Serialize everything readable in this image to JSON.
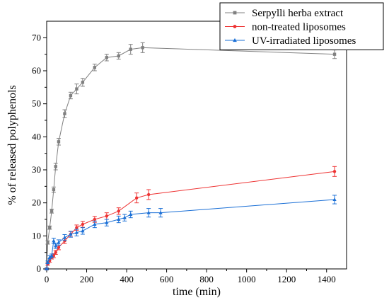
{
  "chart_data": {
    "type": "line",
    "title": "",
    "xlabel": "time (min)",
    "ylabel": "% of released polyphenols",
    "xlim": [
      0,
      1500
    ],
    "ylim": [
      0,
      75
    ],
    "xticks": [
      0,
      200,
      400,
      600,
      800,
      1000,
      1200,
      1400
    ],
    "yticks": [
      0,
      10,
      20,
      30,
      40,
      50,
      60,
      70
    ],
    "grid": false,
    "legend_position": "top-right",
    "series": [
      {
        "name": "Serpylli herba extract",
        "color": "#808080",
        "marker": "square",
        "x": [
          0,
          5,
          15,
          25,
          35,
          45,
          60,
          90,
          120,
          150,
          180,
          240,
          300,
          360,
          420,
          480,
          1440
        ],
        "y": [
          0,
          8,
          12.5,
          17.5,
          24,
          31,
          38.5,
          47,
          52.5,
          54.5,
          56.5,
          61,
          64,
          64.5,
          66.5,
          67,
          65
        ],
        "err": [
          0.3,
          0.5,
          0.5,
          0.6,
          0.8,
          1.0,
          1.0,
          1.2,
          1.0,
          1.5,
          1.2,
          1.0,
          1.0,
          1.0,
          1.5,
          1.5,
          1.3
        ]
      },
      {
        "name": "non-treated liposomes",
        "color": "#ee3333",
        "marker": "circle",
        "x": [
          0,
          5,
          15,
          25,
          35,
          45,
          60,
          90,
          120,
          150,
          180,
          240,
          300,
          360,
          450,
          510,
          1440
        ],
        "y": [
          0,
          1.5,
          2.5,
          3.5,
          4,
          5,
          6.5,
          8.5,
          10.5,
          12.5,
          13.5,
          15,
          16,
          17.5,
          21.5,
          22.5,
          29.5
        ],
        "err": [
          0.2,
          0.4,
          0.5,
          0.5,
          0.6,
          0.6,
          0.7,
          0.8,
          0.8,
          0.8,
          0.9,
          0.9,
          1.0,
          1.0,
          1.5,
          1.5,
          1.5
        ]
      },
      {
        "name": "UV-irradiated liposomes",
        "color": "#1a6fd6",
        "marker": "triangle",
        "x": [
          0,
          5,
          15,
          25,
          35,
          45,
          60,
          90,
          120,
          150,
          180,
          240,
          300,
          360,
          390,
          420,
          510,
          570,
          1440
        ],
        "y": [
          0,
          2,
          3.5,
          4,
          8.5,
          7,
          8,
          9.5,
          10.5,
          11,
          11.5,
          13.5,
          14,
          15,
          15.5,
          16.5,
          17,
          17,
          21
        ],
        "err": [
          0.2,
          0.4,
          0.5,
          0.5,
          0.8,
          0.8,
          0.8,
          0.9,
          0.9,
          1.0,
          1.0,
          1.0,
          1.0,
          1.0,
          1.0,
          1.0,
          1.3,
          1.3,
          1.3
        ]
      }
    ]
  }
}
